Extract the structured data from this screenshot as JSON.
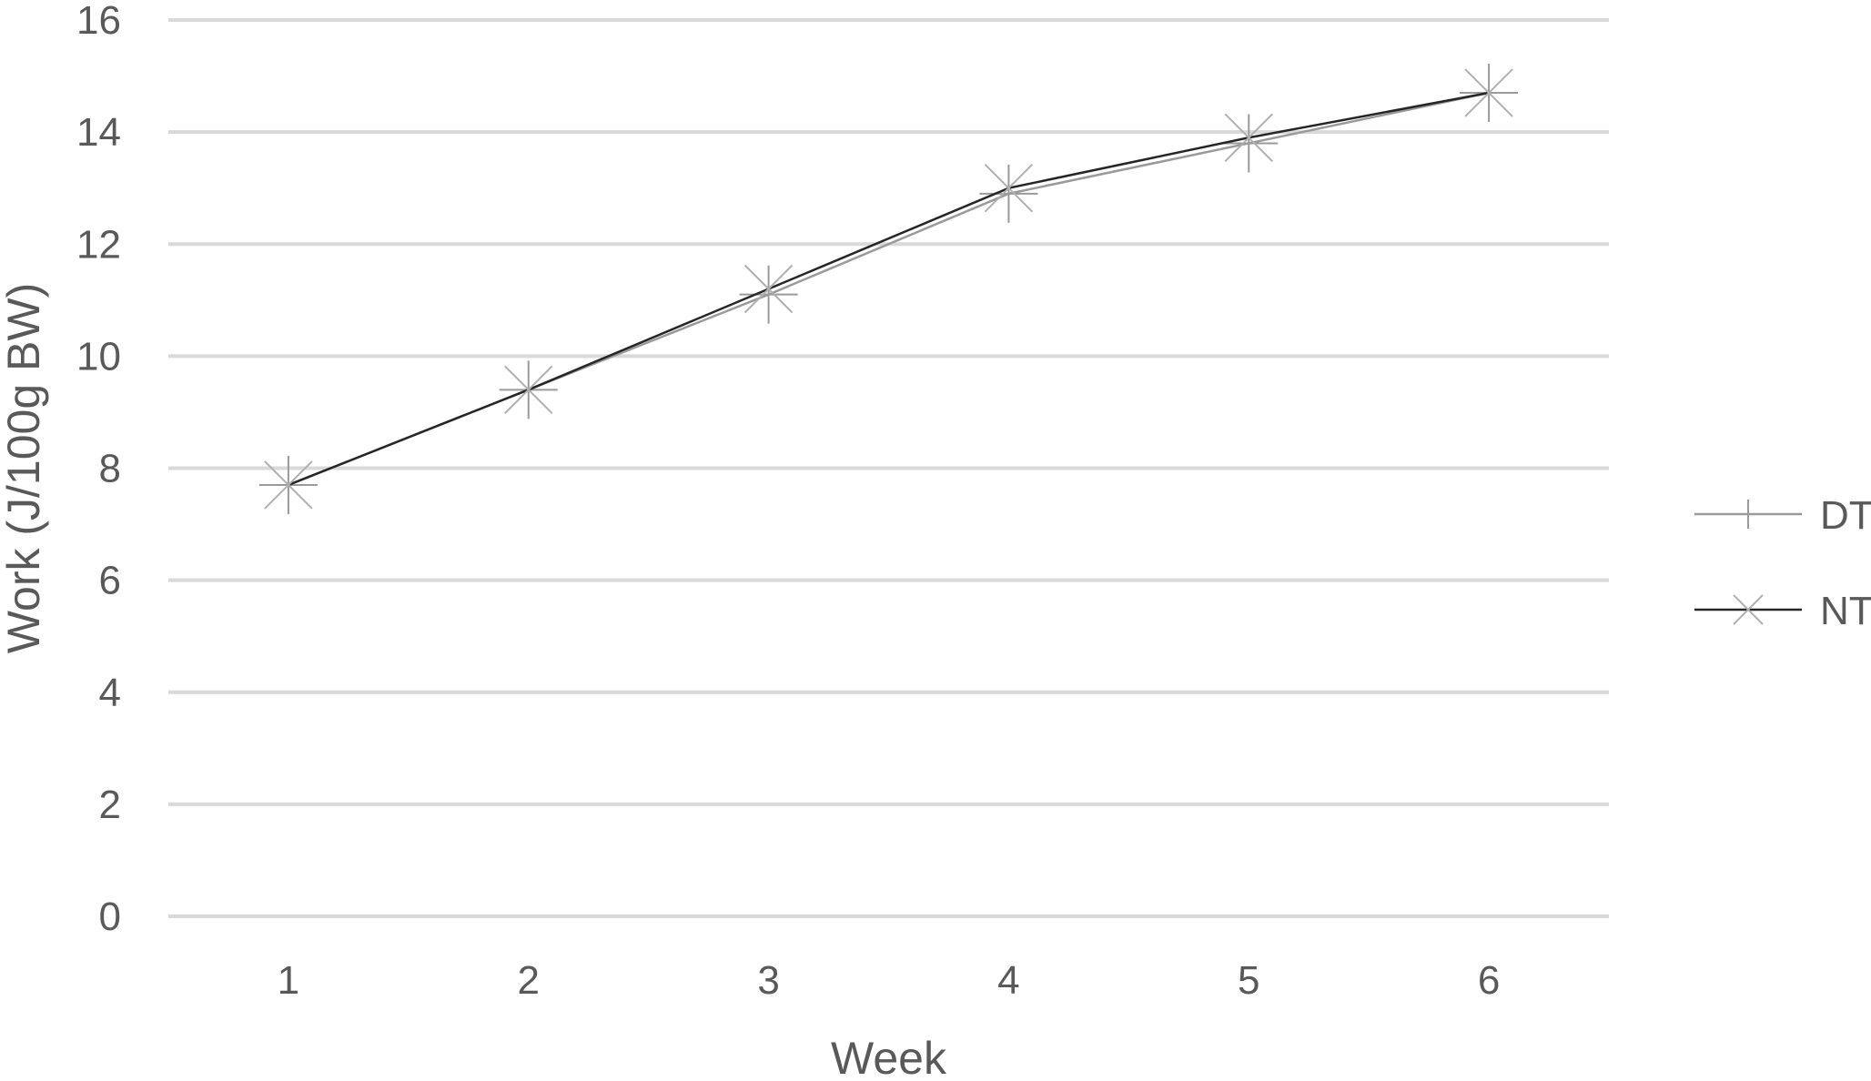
{
  "chart_data": {
    "type": "line",
    "title": "",
    "xlabel": "Week",
    "ylabel": "Work (J/100g BW)",
    "categories": [
      "1",
      "2",
      "3",
      "4",
      "5",
      "6"
    ],
    "ylim": [
      0,
      16
    ],
    "yticks": [
      0,
      2,
      4,
      6,
      8,
      10,
      12,
      14,
      16
    ],
    "grid": true,
    "legend_position": "right",
    "series": [
      {
        "name": "DT",
        "values": [
          7.7,
          9.4,
          11.1,
          12.9,
          13.8,
          14.7
        ],
        "color": "#9a9a9a",
        "marker": "plus"
      },
      {
        "name": "NT",
        "values": [
          7.7,
          9.4,
          11.2,
          13.0,
          13.9,
          14.7
        ],
        "color": "#262626",
        "marker": "cross"
      }
    ]
  }
}
